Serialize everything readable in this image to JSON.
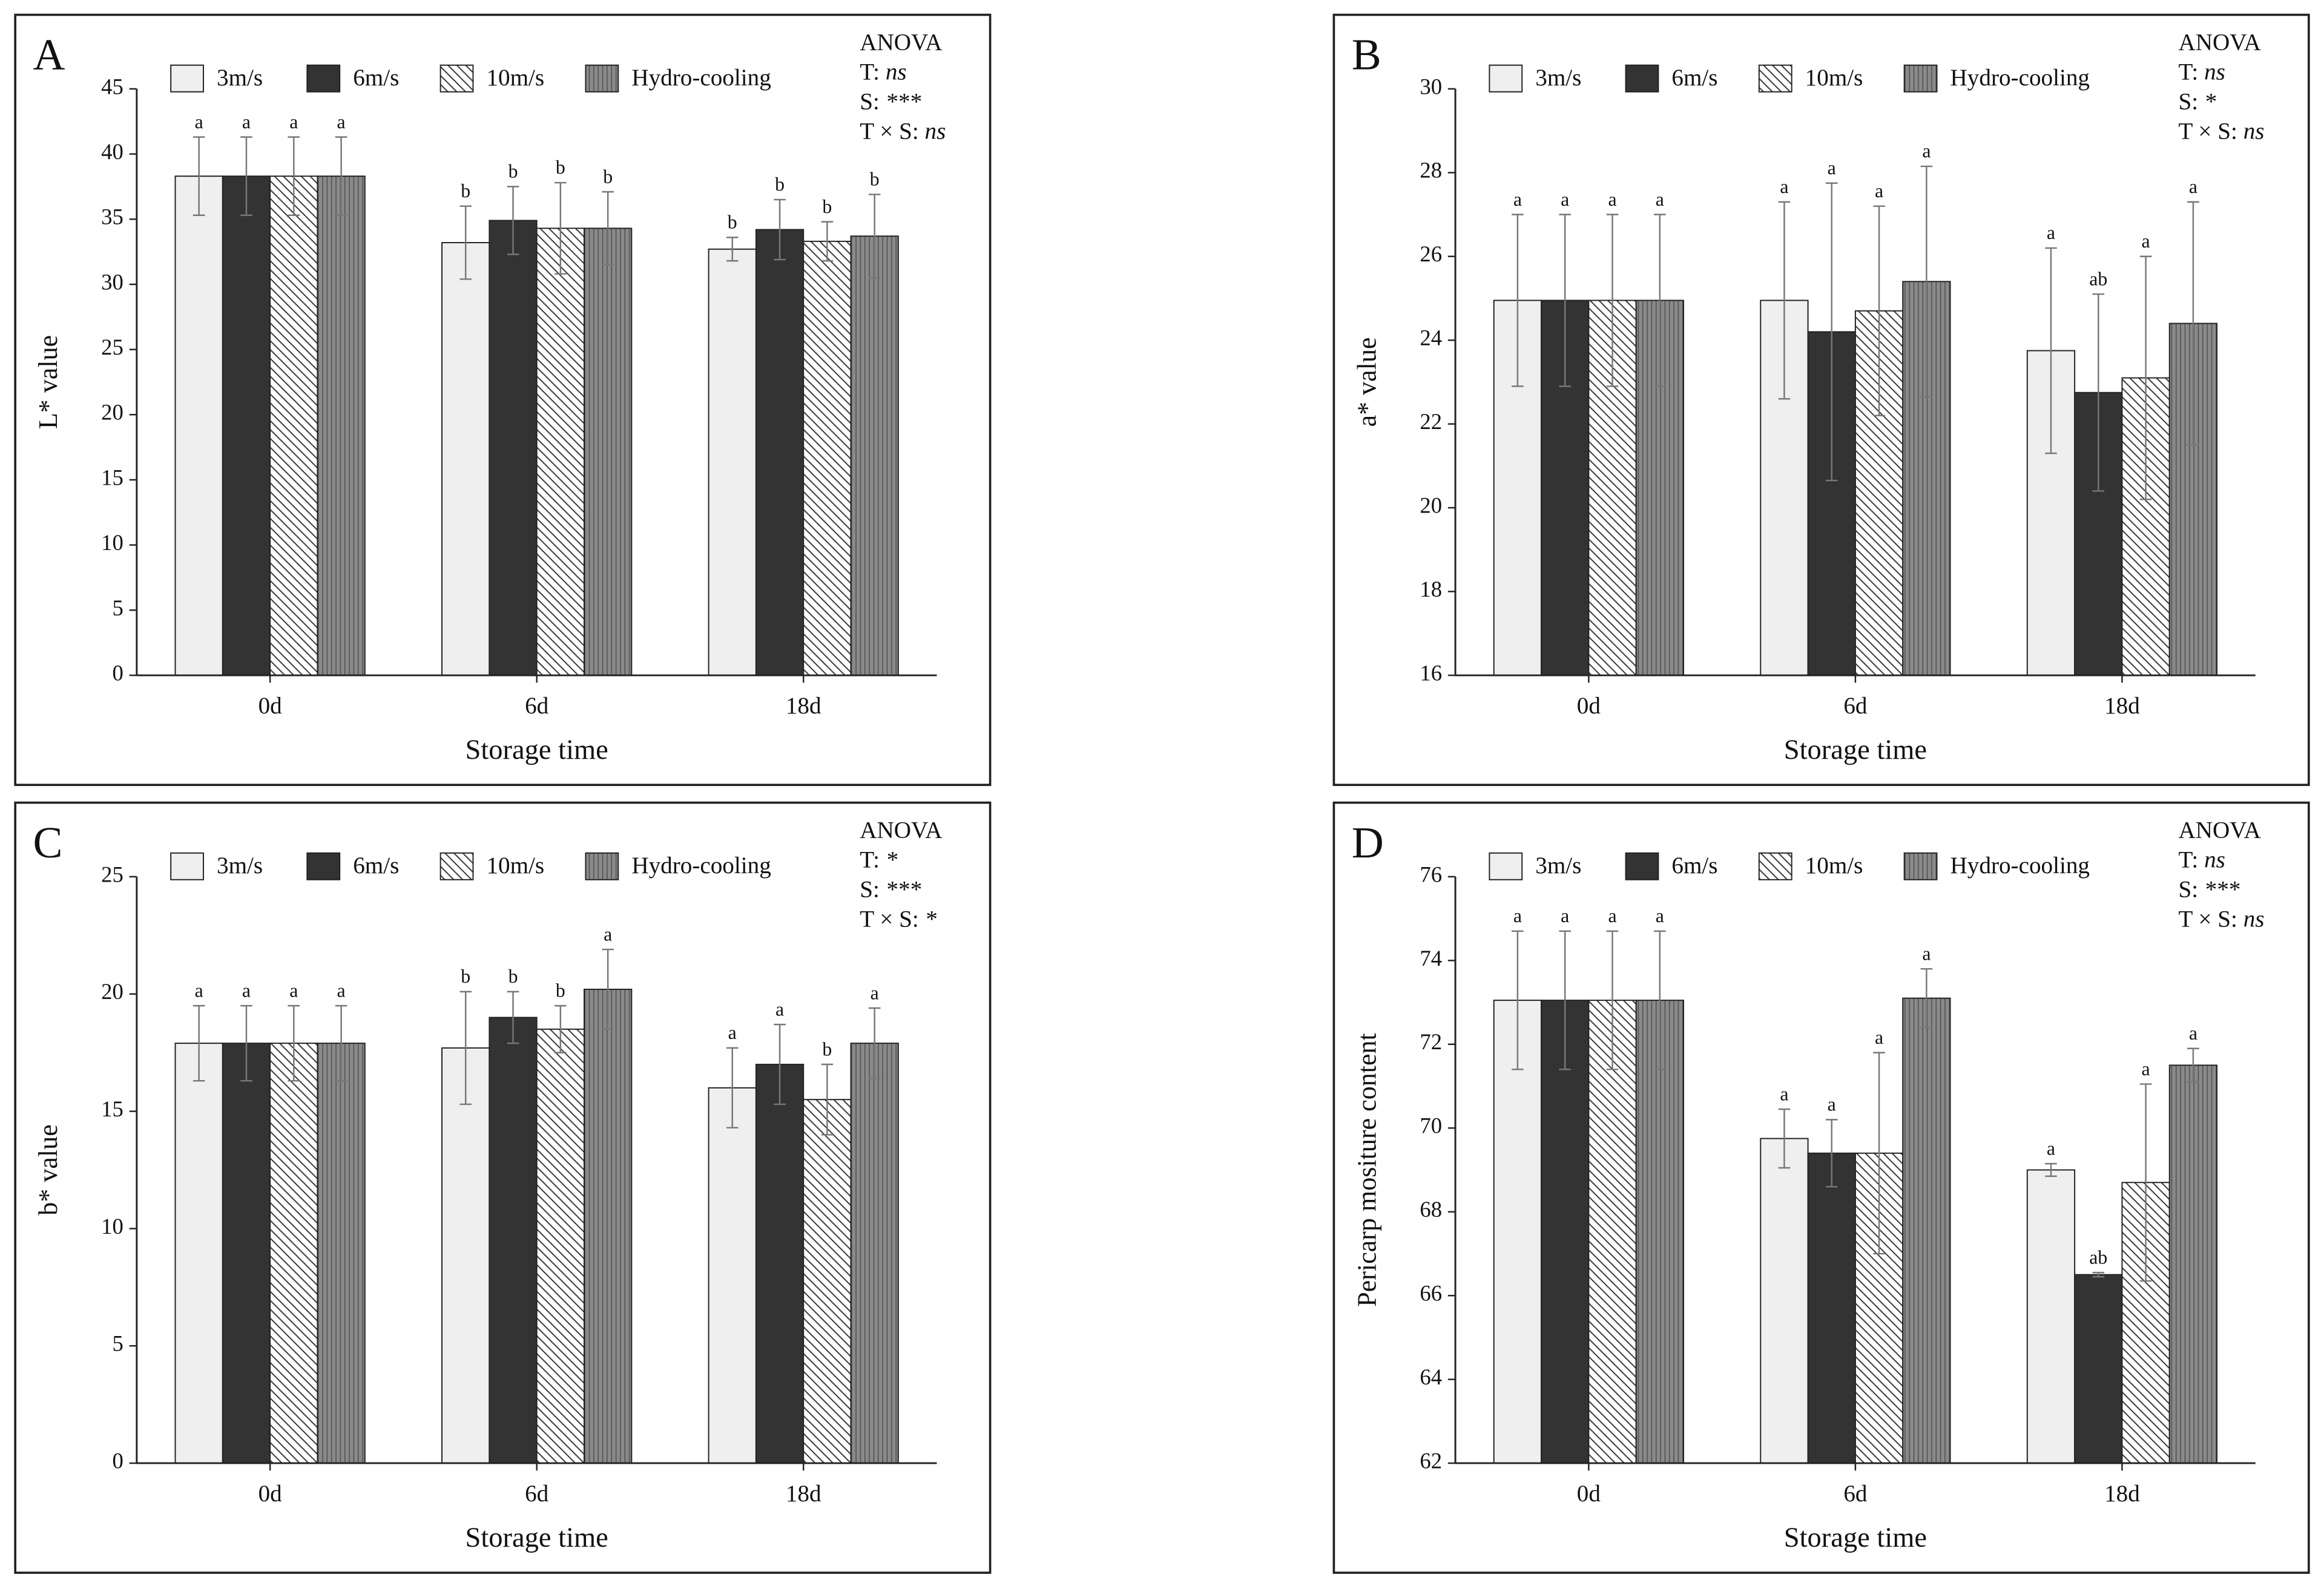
{
  "chart_data": [
    {
      "type": "bar",
      "title": "A",
      "ylabel": "L* value",
      "xlabel": "Storage time",
      "categories": [
        "0d",
        "6d",
        "18d"
      ],
      "ylim": [
        0,
        45
      ],
      "yticks": [
        0,
        5,
        10,
        15,
        20,
        25,
        30,
        35,
        40,
        45
      ],
      "series": [
        {
          "name": "3m/s",
          "color": "#efefef",
          "hatch": "none",
          "values": [
            38.3,
            33.2,
            32.7
          ],
          "errors": [
            3.0,
            2.8,
            0.9
          ],
          "letters": [
            "a",
            "b",
            "b"
          ]
        },
        {
          "name": "6m/s",
          "color": "#333333",
          "hatch": "none",
          "values": [
            38.3,
            34.9,
            34.2
          ],
          "errors": [
            3.0,
            2.6,
            2.3
          ],
          "letters": [
            "a",
            "b",
            "b"
          ]
        },
        {
          "name": "10m/s",
          "color": "#ffffff",
          "hatch": "diagonal",
          "values": [
            38.3,
            34.3,
            33.3
          ],
          "errors": [
            3.0,
            3.5,
            1.5
          ],
          "letters": [
            "a",
            "b",
            "b"
          ]
        },
        {
          "name": "Hydro-cooling",
          "color": "#8a8a8a",
          "hatch": "vertical",
          "values": [
            38.3,
            34.3,
            33.7
          ],
          "errors": [
            3.0,
            2.8,
            3.2
          ],
          "letters": [
            "a",
            "b",
            "b"
          ]
        }
      ],
      "anova": {
        "title": "ANOVA",
        "rows": [
          {
            "label": "T:",
            "value": "ns"
          },
          {
            "label": "S:",
            "value": "***"
          },
          {
            "label": "T × S:",
            "value": "ns"
          }
        ]
      }
    },
    {
      "type": "bar",
      "title": "B",
      "ylabel": "a* value",
      "xlabel": "Storage time",
      "categories": [
        "0d",
        "6d",
        "18d"
      ],
      "ylim": [
        16,
        30
      ],
      "yticks": [
        16,
        18,
        20,
        22,
        24,
        26,
        28,
        30
      ],
      "series": [
        {
          "name": "3m/s",
          "color": "#efefef",
          "hatch": "none",
          "values": [
            24.95,
            24.95,
            23.75
          ],
          "errors": [
            2.05,
            2.35,
            2.45
          ],
          "letters": [
            "a",
            "a",
            "a"
          ]
        },
        {
          "name": "6m/s",
          "color": "#333333",
          "hatch": "none",
          "values": [
            24.95,
            24.2,
            22.75
          ],
          "errors": [
            2.05,
            3.55,
            2.35
          ],
          "letters": [
            "a",
            "a",
            "ab"
          ]
        },
        {
          "name": "10m/s",
          "color": "#ffffff",
          "hatch": "diagonal",
          "values": [
            24.95,
            24.7,
            23.1
          ],
          "errors": [
            2.05,
            2.5,
            2.9
          ],
          "letters": [
            "a",
            "a",
            "a"
          ]
        },
        {
          "name": "Hydro-cooling",
          "color": "#8a8a8a",
          "hatch": "vertical",
          "values": [
            24.95,
            25.4,
            24.4
          ],
          "errors": [
            2.05,
            2.75,
            2.9
          ],
          "letters": [
            "a",
            "a",
            "a"
          ]
        }
      ],
      "anova": {
        "title": "ANOVA",
        "rows": [
          {
            "label": "T:",
            "value": "ns"
          },
          {
            "label": "S:",
            "value": "*"
          },
          {
            "label": "T × S:",
            "value": "ns"
          }
        ]
      }
    },
    {
      "type": "bar",
      "title": "C",
      "ylabel": "b* value",
      "xlabel": "Storage time",
      "categories": [
        "0d",
        "6d",
        "18d"
      ],
      "ylim": [
        0,
        25
      ],
      "yticks": [
        0,
        5,
        10,
        15,
        20,
        25
      ],
      "series": [
        {
          "name": "3m/s",
          "color": "#efefef",
          "hatch": "none",
          "values": [
            17.9,
            17.7,
            16.0
          ],
          "errors": [
            1.6,
            2.4,
            1.7
          ],
          "letters": [
            "a",
            "b",
            "a"
          ]
        },
        {
          "name": "6m/s",
          "color": "#333333",
          "hatch": "none",
          "values": [
            17.9,
            19.0,
            17.0
          ],
          "errors": [
            1.6,
            1.1,
            1.7
          ],
          "letters": [
            "a",
            "b",
            "a"
          ]
        },
        {
          "name": "10m/s",
          "color": "#ffffff",
          "hatch": "diagonal",
          "values": [
            17.9,
            18.5,
            15.5
          ],
          "errors": [
            1.6,
            1.0,
            1.5
          ],
          "letters": [
            "a",
            "b",
            "b"
          ]
        },
        {
          "name": "Hydro-cooling",
          "color": "#8a8a8a",
          "hatch": "vertical",
          "values": [
            17.9,
            20.2,
            17.9
          ],
          "errors": [
            1.6,
            1.7,
            1.5
          ],
          "letters": [
            "a",
            "a",
            "a"
          ]
        }
      ],
      "anova": {
        "title": "ANOVA",
        "rows": [
          {
            "label": "T:",
            "value": "*"
          },
          {
            "label": "S:",
            "value": "***"
          },
          {
            "label": "T × S:",
            "value": "*"
          }
        ]
      }
    },
    {
      "type": "bar",
      "title": "D",
      "ylabel": "Pericarp mositure content",
      "xlabel": "Storage time",
      "categories": [
        "0d",
        "6d",
        "18d"
      ],
      "ylim": [
        62,
        76
      ],
      "yticks": [
        62,
        64,
        66,
        68,
        70,
        72,
        74,
        76
      ],
      "series": [
        {
          "name": "3m/s",
          "color": "#efefef",
          "hatch": "none",
          "values": [
            73.05,
            69.75,
            69.0
          ],
          "errors": [
            1.65,
            0.7,
            0.15
          ],
          "letters": [
            "a",
            "a",
            "a"
          ]
        },
        {
          "name": "6m/s",
          "color": "#333333",
          "hatch": "none",
          "values": [
            73.05,
            69.4,
            66.5
          ],
          "errors": [
            1.65,
            0.8,
            0.05
          ],
          "letters": [
            "a",
            "a",
            "ab"
          ]
        },
        {
          "name": "10m/s",
          "color": "#ffffff",
          "hatch": "diagonal",
          "values": [
            73.05,
            69.4,
            68.7
          ],
          "errors": [
            1.65,
            2.4,
            2.35
          ],
          "letters": [
            "a",
            "a",
            "a"
          ]
        },
        {
          "name": "Hydro-cooling",
          "color": "#8a8a8a",
          "hatch": "vertical",
          "values": [
            73.05,
            73.1,
            71.5
          ],
          "errors": [
            1.65,
            0.7,
            0.4
          ],
          "letters": [
            "a",
            "a",
            "a"
          ]
        }
      ],
      "anova": {
        "title": "ANOVA",
        "rows": [
          {
            "label": "T:",
            "value": "ns"
          },
          {
            "label": "S:",
            "value": "***"
          },
          {
            "label": "T × S:",
            "value": "ns"
          }
        ]
      }
    }
  ]
}
